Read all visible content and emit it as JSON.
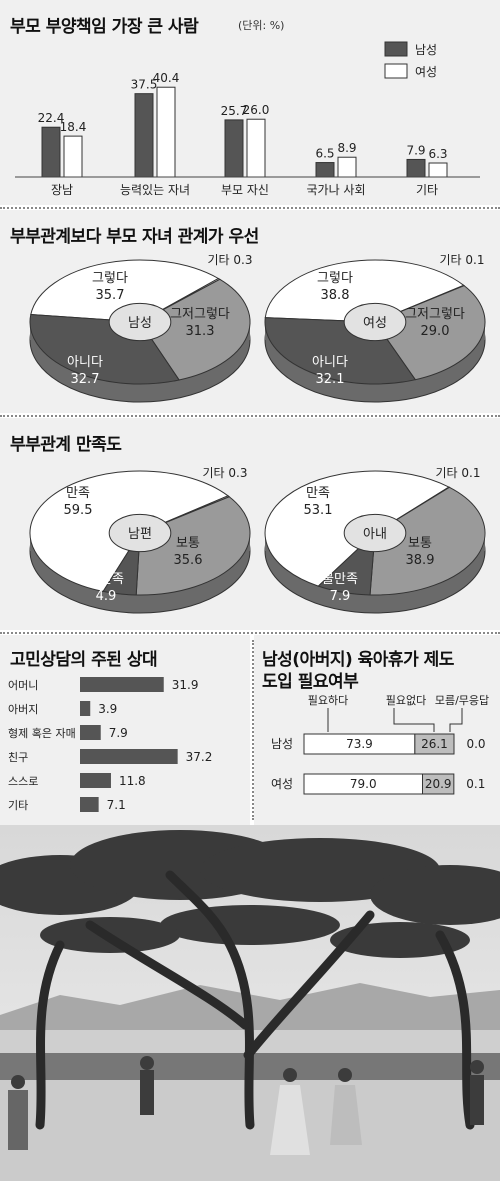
{
  "chart_data": [
    {
      "type": "bar",
      "title": "부모 부양책임 가장 큰 사람",
      "unit": "(단위: %)",
      "categories": [
        "장남",
        "능력있는 자녀",
        "부모 자신",
        "국가나 사회",
        "기타"
      ],
      "series": [
        {
          "name": "남성",
          "values": [
            22.4,
            37.5,
            25.7,
            6.5,
            7.9
          ]
        },
        {
          "name": "여성",
          "values": [
            18.4,
            40.4,
            26.0,
            8.9,
            6.3
          ]
        }
      ],
      "value_labels": {
        "남성": [
          "22.4",
          "37.5",
          "25.7",
          "6.5",
          "7.9"
        ],
        "여성": [
          "18.4",
          "40.4",
          "26.0",
          "8.9",
          "6.3"
        ]
      },
      "legend": "top-right",
      "ylim": [
        0,
        45
      ]
    },
    {
      "type": "pie",
      "title": "부부관계보다 부모 자녀 관계가 우선",
      "charts": [
        {
          "center": "남성",
          "slices": [
            {
              "label": "그렇다",
              "value": 35.7,
              "value_text": "35.7",
              "color": "#ffffff"
            },
            {
              "label": "기타",
              "value": 0.3,
              "value_text": "0.3",
              "color": "#dddddd"
            },
            {
              "label": "그저그렇다",
              "value": 31.3,
              "value_text": "31.3",
              "color": "#9a9a9a"
            },
            {
              "label": "아니다",
              "value": 32.7,
              "value_text": "32.7",
              "color": "#555555"
            }
          ]
        },
        {
          "center": "여성",
          "slices": [
            {
              "label": "그렇다",
              "value": 38.8,
              "value_text": "38.8",
              "color": "#ffffff"
            },
            {
              "label": "기타",
              "value": 0.1,
              "value_text": "0.1",
              "color": "#dddddd"
            },
            {
              "label": "그저그렇다",
              "value": 29.0,
              "value_text": "29.0",
              "color": "#9a9a9a"
            },
            {
              "label": "아니다",
              "value": 32.1,
              "value_text": "32.1",
              "color": "#555555"
            }
          ]
        }
      ]
    },
    {
      "type": "pie",
      "title": "부부관계 만족도",
      "charts": [
        {
          "center": "남편",
          "slices": [
            {
              "label": "만족",
              "value": 59.5,
              "value_text": "59.5",
              "color": "#ffffff"
            },
            {
              "label": "기타",
              "value": 0.3,
              "value_text": "0.3",
              "color": "#dddddd"
            },
            {
              "label": "보통",
              "value": 35.6,
              "value_text": "35.6",
              "color": "#9a9a9a"
            },
            {
              "label": "불만족",
              "value": 4.9,
              "value_text": "4.9",
              "color": "#555555"
            }
          ]
        },
        {
          "center": "아내",
          "slices": [
            {
              "label": "만족",
              "value": 53.1,
              "value_text": "53.1",
              "color": "#ffffff"
            },
            {
              "label": "기타",
              "value": 0.1,
              "value_text": "0.1",
              "color": "#dddddd"
            },
            {
              "label": "보통",
              "value": 38.9,
              "value_text": "38.9",
              "color": "#9a9a9a"
            },
            {
              "label": "불만족",
              "value": 7.9,
              "value_text": "7.9",
              "color": "#555555"
            }
          ]
        }
      ]
    },
    {
      "type": "bar",
      "orientation": "horizontal",
      "title": "고민상담의 주된 상대",
      "categories": [
        "어머니",
        "아버지",
        "형제 혹은 자매",
        "친구",
        "스스로",
        "기타"
      ],
      "values": [
        31.9,
        3.9,
        7.9,
        37.2,
        11.8,
        7.1
      ],
      "value_labels": [
        "31.9",
        "3.9",
        "7.9",
        "37.2",
        "11.8",
        "7.1"
      ],
      "xlim": [
        0,
        40
      ]
    },
    {
      "type": "bar",
      "orientation": "horizontal",
      "stacked": true,
      "title_lines": [
        "남성(아버지) 육아휴가 제도",
        "도입 필요여부"
      ],
      "legend_labels": [
        "필요하다",
        "필요없다",
        "모름/무응답"
      ],
      "categories": [
        "남성",
        "여성"
      ],
      "series": [
        {
          "name": "필요하다",
          "values": [
            73.9,
            79.0
          ],
          "labels": [
            "73.9",
            "79.0"
          ]
        },
        {
          "name": "필요없다",
          "values": [
            26.1,
            20.9
          ],
          "labels": [
            "26.1",
            "20.9"
          ]
        },
        {
          "name": "모름/무응답",
          "values": [
            0.0,
            0.1
          ],
          "labels": [
            "0.0",
            "0.1"
          ]
        }
      ]
    }
  ],
  "colors": {
    "dark": "#555555",
    "mid": "#9a9a9a",
    "light": "#ffffff",
    "panel": "#f0f0f0"
  },
  "photo": {
    "description_icon": "photo-park-scene"
  }
}
